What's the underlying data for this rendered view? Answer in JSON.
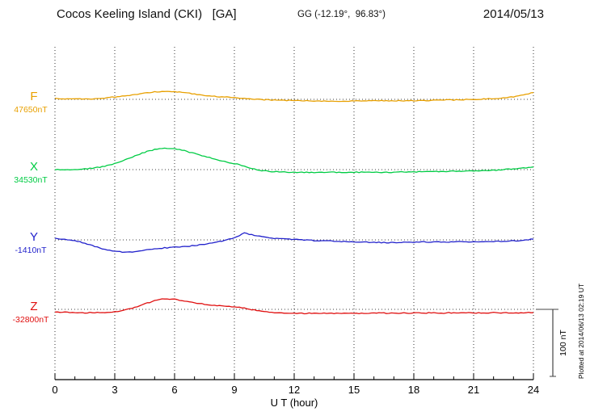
{
  "header": {
    "title": "Cocos Keeling Island (CKI)   [GA]",
    "gg": "GG (-12.19°,  96.83°)",
    "date": "2014/05/13"
  },
  "footer": {
    "plotted_at": "Plotted at 2014/06/13 02:19 UT"
  },
  "chart_data": {
    "type": "line",
    "title": "Cocos Keeling Island (CKI) [GA] 2014/05/13",
    "xlabel": "U T (hour)",
    "x_range": [
      0,
      24
    ],
    "x_ticks": [
      0,
      3,
      6,
      9,
      12,
      15,
      18,
      21,
      24
    ],
    "x_step_hours": 0.5,
    "scale_bar": {
      "label": "100 nT",
      "nT": 100
    },
    "series": [
      {
        "name": "F",
        "baseline_label": "47650nT",
        "color": "#e8a000",
        "offsets_nT": [
          1,
          1,
          0.5,
          0.5,
          1,
          2,
          3.5,
          5,
          7,
          9,
          11,
          12,
          11.5,
          10,
          8,
          6,
          4.5,
          3.5,
          2.5,
          1.5,
          0.5,
          -0.5,
          -1,
          -1.5,
          -2,
          -2,
          -2.5,
          -2.5,
          -3,
          -3,
          -2.5,
          -2.5,
          -2,
          -2,
          -2,
          -2.5,
          -2,
          -1.5,
          -1.5,
          -1,
          -1,
          -0.5,
          0,
          0.5,
          1,
          2,
          4,
          7,
          10
        ]
      },
      {
        "name": "X",
        "baseline_label": "34530nT",
        "color": "#00cc44",
        "offsets_nT": [
          0,
          0,
          0.5,
          1,
          2.5,
          5,
          9,
          14,
          20,
          26,
          30,
          32,
          31,
          28,
          24,
          20,
          16,
          12,
          9,
          5,
          1,
          -2,
          -3,
          -3.5,
          -4,
          -4,
          -4.5,
          -4,
          -4,
          -4.5,
          -4,
          -4,
          -3.5,
          -4,
          -4,
          -3.5,
          -3.5,
          -3,
          -3,
          -3,
          -2.5,
          -2.5,
          -2,
          -1.5,
          -1,
          0,
          1,
          2.5,
          4
        ]
      },
      {
        "name": "Y",
        "baseline_label": "-1410nT",
        "color": "#2222cc",
        "offsets_nT": [
          2,
          1,
          -1,
          -5,
          -10,
          -14,
          -17,
          -18.5,
          -17.5,
          -15.5,
          -13.5,
          -12,
          -11,
          -10,
          -8.5,
          -6.5,
          -4,
          -1,
          3,
          10,
          7,
          4,
          2.5,
          1.5,
          0.5,
          0,
          -1,
          -1.5,
          -2,
          -2.5,
          -3,
          -3.5,
          -3.5,
          -4,
          -4,
          -3.5,
          -3.5,
          -3,
          -3.5,
          -3,
          -3,
          -2.5,
          -3,
          -2.5,
          -2,
          -2,
          -1.5,
          -0.5,
          1
        ]
      },
      {
        "name": "Z",
        "baseline_label": "-32800nT",
        "color": "#e01010",
        "offsets_nT": [
          -4,
          -4.5,
          -5,
          -5,
          -5,
          -4.5,
          -3.5,
          -1,
          3,
          8,
          13,
          16,
          15,
          12.5,
          10,
          7.5,
          6,
          4.5,
          3.5,
          2,
          -1,
          -3.5,
          -5,
          -5.5,
          -5.5,
          -6,
          -5.5,
          -6,
          -6,
          -5.5,
          -6,
          -6,
          -5.5,
          -5.5,
          -6,
          -5.5,
          -5.5,
          -5.5,
          -5,
          -5.5,
          -5,
          -5,
          -5.5,
          -5,
          -5,
          -5.5,
          -5,
          -5,
          -5
        ]
      }
    ]
  }
}
